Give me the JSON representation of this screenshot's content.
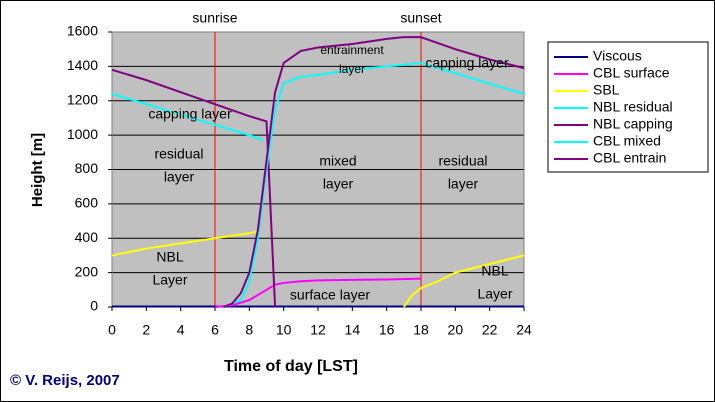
{
  "chart_data": {
    "type": "line",
    "xlabel": "Time of day [LST]",
    "ylabel": "Height [m]",
    "xlim": [
      0,
      24
    ],
    "ylim": [
      0,
      1600
    ],
    "xticks": [
      0,
      2,
      4,
      6,
      8,
      10,
      12,
      14,
      16,
      18,
      20,
      22,
      24
    ],
    "yticks": [
      0,
      200,
      400,
      600,
      800,
      1000,
      1200,
      1400,
      1600
    ],
    "grid": true,
    "legend": "right",
    "vlines": [
      {
        "x": 6,
        "label": "sunrise",
        "color": "#ff0000"
      },
      {
        "x": 18,
        "label": "sunset",
        "color": "#ff0000"
      }
    ],
    "annotations": [
      {
        "lines": [
          "capping layer"
        ]
      },
      {
        "lines": [
          "residual",
          "layer"
        ]
      },
      {
        "lines": [
          "mixed",
          "layer"
        ]
      },
      {
        "lines": [
          "residual",
          "layer"
        ]
      },
      {
        "lines": [
          "capping layer"
        ]
      },
      {
        "lines": [
          "entrainment",
          "layer"
        ]
      },
      {
        "lines": [
          "NBL",
          "Layer"
        ]
      },
      {
        "lines": [
          "NBL",
          "Layer"
        ]
      },
      {
        "lines": [
          "surface layer"
        ]
      }
    ],
    "credit": "© V. Reijs, 2007",
    "series": [
      {
        "name": "Viscous",
        "color": "#000080",
        "x": [
          0,
          24
        ],
        "values": [
          3,
          3
        ]
      },
      {
        "name": "CBL surface",
        "color": "#ff00ff",
        "x": [
          6,
          7,
          8,
          9,
          9.5,
          10,
          11,
          12,
          14,
          16,
          18
        ],
        "values": [
          0,
          10,
          40,
          100,
          130,
          140,
          150,
          155,
          158,
          160,
          165
        ]
      },
      {
        "name": "SBL",
        "color": "#ffff00",
        "x": [
          0,
          2,
          4,
          6,
          8,
          8.5,
          8.6,
          17,
          17.5,
          18,
          19,
          20,
          22,
          24
        ],
        "values": [
          300,
          340,
          370,
          400,
          430,
          440,
          null,
          0,
          70,
          110,
          150,
          200,
          250,
          300
        ]
      },
      {
        "name": "NBL residual",
        "color": "#00ffff",
        "x": [
          0,
          2,
          4,
          6,
          8,
          8.8,
          8.9,
          18,
          20,
          22,
          24
        ],
        "values": [
          1240,
          1180,
          1120,
          1060,
          1000,
          970,
          null,
          1420,
          1360,
          1300,
          1240
        ]
      },
      {
        "name": "NBL capping",
        "color": "#800080",
        "x": [
          0,
          2,
          4,
          6,
          8,
          9,
          9.5,
          9.6,
          18,
          20,
          22,
          24
        ],
        "values": [
          1380,
          1320,
          1250,
          1180,
          1110,
          1080,
          0,
          null,
          1570,
          1500,
          1440,
          1390
        ]
      },
      {
        "name": "CBL mixed",
        "color": "#00ffff",
        "x": [
          6.5,
          7.5,
          8,
          8.5,
          9,
          9.5,
          10,
          11,
          12,
          14,
          16,
          18
        ],
        "values": [
          0,
          40,
          150,
          400,
          800,
          1150,
          1300,
          1340,
          1350,
          1380,
          1400,
          1420
        ]
      },
      {
        "name": "CBL entrain",
        "color": "#800080",
        "x": [
          6.5,
          7,
          7.5,
          8,
          8.5,
          9,
          9.5,
          10,
          11,
          12,
          14,
          16,
          17,
          18
        ],
        "values": [
          0,
          20,
          80,
          200,
          450,
          850,
          1250,
          1420,
          1490,
          1510,
          1530,
          1560,
          1570,
          1570
        ]
      }
    ]
  }
}
